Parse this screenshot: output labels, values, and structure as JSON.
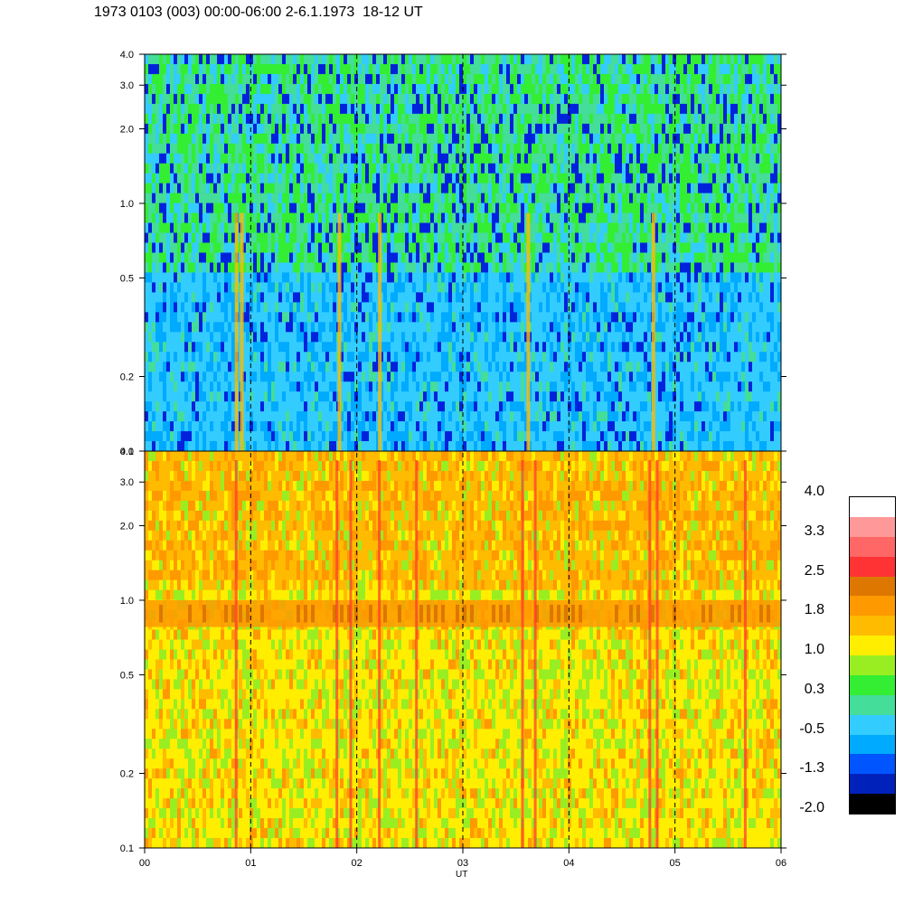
{
  "title": "1973 0103 (003) 00:00-06:00 2-6.1.1973  18-12 UT",
  "chart_data": {
    "type": "heatmap",
    "panels": [
      {
        "name": "",
        "yticks": [
          "0.1",
          "0.2",
          "0.5",
          "1.0",
          "2.0",
          "3.0",
          "4.0"
        ],
        "ytick_values": [
          0.1,
          0.2,
          0.5,
          1.0,
          2.0,
          3.0,
          4.0
        ],
        "ylim": [
          0.1,
          4.0
        ],
        "yscale": "log",
        "background_level": -0.6,
        "dominant_colors": [
          "#00aaff",
          "#33ccff",
          "#44dd99",
          "#33ee33",
          "#0022dd"
        ]
      },
      {
        "name": "",
        "yticks": [
          "0.1",
          "0.2",
          "0.5",
          "1.0",
          "2.0",
          "3.0",
          "4.0"
        ],
        "ytick_values": [
          0.1,
          0.2,
          0.5,
          1.0,
          2.0,
          3.0,
          4.0
        ],
        "ylim": [
          0.1,
          4.0
        ],
        "yscale": "log",
        "background_level": 1.0,
        "band": {
          "y_low": 0.78,
          "y_high": 1.0,
          "level": 2.0
        },
        "dominant_colors": [
          "#ffee00",
          "#ffbb00",
          "#ff9900",
          "#99ee22",
          "#ff3333"
        ]
      }
    ],
    "xticks": [
      "00",
      "01",
      "02",
      "03",
      "04",
      "05",
      "06"
    ],
    "xtick_values": [
      0,
      1,
      2,
      3,
      4,
      5,
      6
    ],
    "xlim": [
      0,
      6
    ],
    "xlabel": "UT",
    "dashed_vlines_at": [
      1,
      2,
      3,
      4,
      5
    ],
    "colorbar": {
      "labels": [
        "4.0",
        "3.3",
        "2.5",
        "1.8",
        "1.0",
        "0.3",
        "-0.5",
        "-1.3",
        "-2.0"
      ],
      "colors": [
        "#ffffff",
        "#ff9999",
        "#ff6666",
        "#ff3333",
        "#dd7700",
        "#ff9900",
        "#ffbb00",
        "#ffee00",
        "#99ee22",
        "#33ee33",
        "#44dd99",
        "#33ccff",
        "#00aaff",
        "#0055ff",
        "#0022bb",
        "#000000"
      ]
    }
  }
}
